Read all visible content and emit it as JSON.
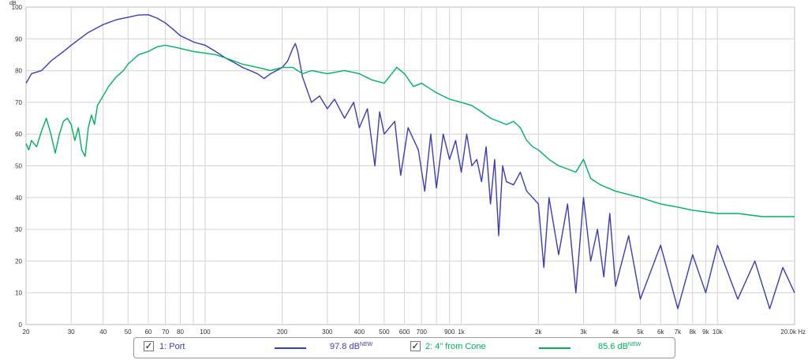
{
  "chart_data": {
    "type": "line",
    "xscale": "log",
    "xlim": [
      20,
      20000
    ],
    "ylim": [
      0,
      100
    ],
    "ylabel": "dB",
    "xunit": "Hz",
    "grid": true,
    "y_ticks": [
      "0",
      "10",
      "20",
      "30",
      "40",
      "50",
      "60",
      "70",
      "80",
      "90",
      "100"
    ],
    "x_ticks": [
      {
        "v": 20,
        "label": "20"
      },
      {
        "v": 30,
        "label": "30"
      },
      {
        "v": 40,
        "label": "40"
      },
      {
        "v": 50,
        "label": "50"
      },
      {
        "v": 60,
        "label": "60"
      },
      {
        "v": 70,
        "label": "70"
      },
      {
        "v": 80,
        "label": "80"
      },
      {
        "v": 100,
        "label": "100"
      },
      {
        "v": 200,
        "label": "200"
      },
      {
        "v": 300,
        "label": "300"
      },
      {
        "v": 400,
        "label": "400"
      },
      {
        "v": 500,
        "label": "500"
      },
      {
        "v": 600,
        "label": "600"
      },
      {
        "v": 700,
        "label": "700"
      },
      {
        "v": 900,
        "label": "900"
      },
      {
        "v": 1000,
        "label": "1k"
      },
      {
        "v": 2000,
        "label": "2k"
      },
      {
        "v": 3000,
        "label": "3k"
      },
      {
        "v": 4000,
        "label": "4k"
      },
      {
        "v": 5000,
        "label": "5k"
      },
      {
        "v": 6000,
        "label": "6k"
      },
      {
        "v": 7000,
        "label": "7k"
      },
      {
        "v": 8000,
        "label": "8k"
      },
      {
        "v": 9000,
        "label": "9k"
      },
      {
        "v": 10000,
        "label": "10k"
      },
      {
        "v": 20000,
        "label": "20.0k Hz"
      }
    ],
    "series": [
      {
        "name": "1: Port",
        "color": "#3c3cb4",
        "level": "97.8 dB",
        "badge": "NEW",
        "checked": true,
        "points": [
          [
            20,
            76
          ],
          [
            21,
            79
          ],
          [
            23,
            80
          ],
          [
            25,
            83
          ],
          [
            28,
            86
          ],
          [
            30,
            88
          ],
          [
            35,
            92
          ],
          [
            40,
            94.5
          ],
          [
            45,
            96
          ],
          [
            50,
            96.8
          ],
          [
            55,
            97.5
          ],
          [
            60,
            97.6
          ],
          [
            65,
            96.5
          ],
          [
            70,
            95
          ],
          [
            75,
            93
          ],
          [
            80,
            91
          ],
          [
            90,
            89
          ],
          [
            100,
            88
          ],
          [
            110,
            86
          ],
          [
            120,
            84
          ],
          [
            130,
            82.5
          ],
          [
            140,
            81
          ],
          [
            150,
            80
          ],
          [
            160,
            79
          ],
          [
            170,
            77.5
          ],
          [
            180,
            79
          ],
          [
            190,
            80
          ],
          [
            200,
            81
          ],
          [
            210,
            83
          ],
          [
            220,
            87
          ],
          [
            225,
            88.5
          ],
          [
            230,
            86
          ],
          [
            240,
            78
          ],
          [
            260,
            70
          ],
          [
            280,
            72
          ],
          [
            300,
            68
          ],
          [
            320,
            71
          ],
          [
            350,
            65
          ],
          [
            380,
            70
          ],
          [
            400,
            62
          ],
          [
            430,
            68
          ],
          [
            460,
            50
          ],
          [
            480,
            67
          ],
          [
            500,
            60
          ],
          [
            550,
            64
          ],
          [
            580,
            47
          ],
          [
            620,
            62
          ],
          [
            680,
            55
          ],
          [
            720,
            42
          ],
          [
            760,
            60
          ],
          [
            800,
            43
          ],
          [
            850,
            60
          ],
          [
            900,
            52
          ],
          [
            950,
            58
          ],
          [
            1000,
            48
          ],
          [
            1050,
            60
          ],
          [
            1100,
            50
          ],
          [
            1150,
            52
          ],
          [
            1200,
            45
          ],
          [
            1250,
            56
          ],
          [
            1300,
            38
          ],
          [
            1350,
            52
          ],
          [
            1400,
            28
          ],
          [
            1450,
            50
          ],
          [
            1500,
            45
          ],
          [
            1600,
            44
          ],
          [
            1700,
            48
          ],
          [
            1800,
            42
          ],
          [
            1900,
            40
          ],
          [
            2000,
            38
          ],
          [
            2100,
            18
          ],
          [
            2200,
            40
          ],
          [
            2400,
            22
          ],
          [
            2600,
            38
          ],
          [
            2800,
            10
          ],
          [
            3000,
            40
          ],
          [
            3200,
            20
          ],
          [
            3400,
            30
          ],
          [
            3600,
            15
          ],
          [
            3800,
            35
          ],
          [
            4000,
            12
          ],
          [
            4500,
            28
          ],
          [
            5000,
            8
          ],
          [
            6000,
            25
          ],
          [
            7000,
            5
          ],
          [
            8000,
            22
          ],
          [
            9000,
            10
          ],
          [
            10000,
            25
          ],
          [
            12000,
            8
          ],
          [
            14000,
            20
          ],
          [
            16000,
            5
          ],
          [
            18000,
            18
          ],
          [
            20000,
            10
          ]
        ]
      },
      {
        "name": "2: 4\" from Cone",
        "color": "#00b060",
        "level": "85.6 dB",
        "badge": "NEW",
        "checked": true,
        "points": [
          [
            20,
            57
          ],
          [
            20.5,
            55
          ],
          [
            21,
            58
          ],
          [
            22,
            56
          ],
          [
            23,
            61
          ],
          [
            24,
            65
          ],
          [
            25,
            60
          ],
          [
            26,
            54
          ],
          [
            27,
            60
          ],
          [
            28,
            64
          ],
          [
            29,
            65
          ],
          [
            30,
            63
          ],
          [
            31,
            58
          ],
          [
            32,
            62
          ],
          [
            33,
            55
          ],
          [
            34,
            53
          ],
          [
            35,
            62
          ],
          [
            36,
            66
          ],
          [
            37,
            63
          ],
          [
            38,
            69
          ],
          [
            40,
            72
          ],
          [
            42,
            75
          ],
          [
            45,
            78
          ],
          [
            48,
            80
          ],
          [
            50,
            82
          ],
          [
            55,
            85
          ],
          [
            60,
            86
          ],
          [
            65,
            87.5
          ],
          [
            70,
            88
          ],
          [
            75,
            87.5
          ],
          [
            80,
            87
          ],
          [
            90,
            86
          ],
          [
            100,
            85.5
          ],
          [
            110,
            85
          ],
          [
            120,
            84
          ],
          [
            130,
            83
          ],
          [
            140,
            82
          ],
          [
            150,
            81.5
          ],
          [
            160,
            81
          ],
          [
            170,
            80.5
          ],
          [
            180,
            80
          ],
          [
            200,
            81
          ],
          [
            220,
            81
          ],
          [
            240,
            79
          ],
          [
            260,
            80
          ],
          [
            300,
            79
          ],
          [
            350,
            80
          ],
          [
            400,
            79
          ],
          [
            450,
            77
          ],
          [
            500,
            76
          ],
          [
            560,
            81
          ],
          [
            600,
            79
          ],
          [
            650,
            75
          ],
          [
            700,
            76
          ],
          [
            800,
            73
          ],
          [
            900,
            71
          ],
          [
            1000,
            70
          ],
          [
            1100,
            69
          ],
          [
            1200,
            67
          ],
          [
            1300,
            65
          ],
          [
            1400,
            64
          ],
          [
            1500,
            63
          ],
          [
            1600,
            64
          ],
          [
            1700,
            62
          ],
          [
            1800,
            58
          ],
          [
            1900,
            56
          ],
          [
            2000,
            55
          ],
          [
            2200,
            52
          ],
          [
            2400,
            50
          ],
          [
            2600,
            49
          ],
          [
            2800,
            48
          ],
          [
            3000,
            52
          ],
          [
            3200,
            46
          ],
          [
            3500,
            44
          ],
          [
            4000,
            42
          ],
          [
            5000,
            40
          ],
          [
            6000,
            38
          ],
          [
            7000,
            37
          ],
          [
            8000,
            36
          ],
          [
            10000,
            35
          ],
          [
            12000,
            35
          ],
          [
            15000,
            34
          ],
          [
            20000,
            34
          ]
        ]
      }
    ]
  }
}
